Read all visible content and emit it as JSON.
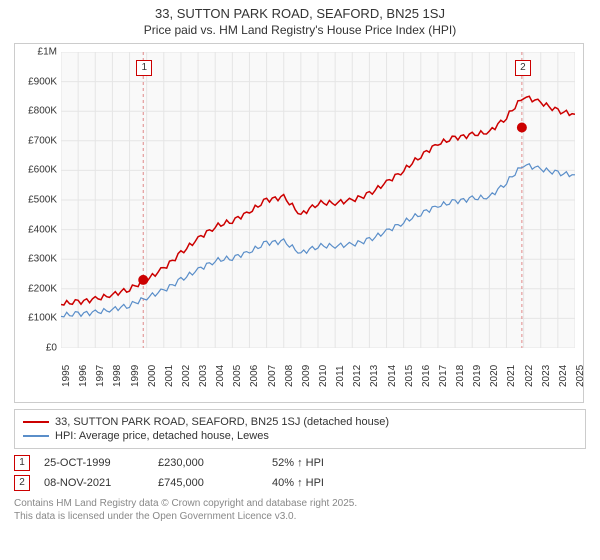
{
  "title": "33, SUTTON PARK ROAD, SEAFORD, BN25 1SJ",
  "subtitle": "Price paid vs. HM Land Registry's House Price Index (HPI)",
  "chart": {
    "type": "line",
    "background_color": "#f9f9f9",
    "grid_color": "#e5e5e5",
    "grid_on": true,
    "x_years": [
      1995,
      1996,
      1997,
      1998,
      1999,
      2000,
      2001,
      2002,
      2003,
      2004,
      2005,
      2006,
      2007,
      2008,
      2009,
      2010,
      2011,
      2012,
      2013,
      2014,
      2015,
      2016,
      2017,
      2018,
      2019,
      2020,
      2021,
      2022,
      2023,
      2024,
      2025
    ],
    "xlim": [
      1995,
      2025
    ],
    "ylim": [
      0,
      1000000
    ],
    "ytick_step": 100000,
    "ytick_labels": [
      "£0",
      "£100K",
      "£200K",
      "£300K",
      "£400K",
      "£500K",
      "£600K",
      "£700K",
      "£800K",
      "£900K",
      "£1M"
    ],
    "series": [
      {
        "name": "33, SUTTON PARK ROAD, SEAFORD, BN25 1SJ (detached house)",
        "color": "#cc0000",
        "line_width": 1.5,
        "x": [
          1995,
          1996,
          1997,
          1998,
          1999,
          2000,
          2001,
          2002,
          2003,
          2004,
          2005,
          2006,
          2007,
          2008,
          2009,
          2010,
          2011,
          2012,
          2013,
          2014,
          2015,
          2016,
          2017,
          2018,
          2019,
          2020,
          2021,
          2022,
          2023,
          2024,
          2025
        ],
        "y": [
          150000,
          155000,
          165000,
          180000,
          200000,
          230000,
          270000,
          320000,
          370000,
          410000,
          430000,
          460000,
          500000,
          510000,
          450000,
          490000,
          490000,
          500000,
          520000,
          560000,
          600000,
          650000,
          690000,
          710000,
          720000,
          730000,
          780000,
          850000,
          830000,
          800000,
          790000
        ]
      },
      {
        "name": "HPI: Average price, detached house, Lewes",
        "color": "#5a8ec9",
        "line_width": 1.2,
        "x": [
          1995,
          1996,
          1997,
          1998,
          1999,
          2000,
          2001,
          2002,
          2003,
          2004,
          2005,
          2006,
          2007,
          2008,
          2009,
          2010,
          2011,
          2012,
          2013,
          2014,
          2015,
          2016,
          2017,
          2018,
          2019,
          2020,
          2021,
          2022,
          2023,
          2024,
          2025
        ],
        "y": [
          110000,
          115000,
          120000,
          130000,
          145000,
          170000,
          195000,
          230000,
          265000,
          295000,
          305000,
          325000,
          355000,
          360000,
          320000,
          345000,
          345000,
          350000,
          365000,
          395000,
          425000,
          455000,
          480000,
          495000,
          505000,
          510000,
          560000,
          620000,
          605000,
          590000,
          585000
        ]
      }
    ],
    "markers": [
      {
        "index": 1,
        "x": 1999.8,
        "y": 230000,
        "color": "#cc0000",
        "radius": 5
      },
      {
        "index": 2,
        "x": 2021.9,
        "y": 745000,
        "color": "#cc0000",
        "radius": 5
      }
    ],
    "vlines": [
      {
        "x": 1999.8,
        "color": "#e08888",
        "dash": true
      },
      {
        "x": 2021.9,
        "color": "#e08888",
        "dash": true
      }
    ],
    "label_fontsize": 10,
    "title_fontsize": 13
  },
  "legend": {
    "items": [
      {
        "label": "33, SUTTON PARK ROAD, SEAFORD, BN25 1SJ (detached house)",
        "color": "#cc0000"
      },
      {
        "label": "HPI: Average price, detached house, Lewes",
        "color": "#5a8ec9"
      }
    ]
  },
  "sales": [
    {
      "index": "1",
      "date": "25-OCT-1999",
      "price": "£230,000",
      "hpi": "52% ↑ HPI"
    },
    {
      "index": "2",
      "date": "08-NOV-2021",
      "price": "£745,000",
      "hpi": "40% ↑ HPI"
    }
  ],
  "license": {
    "line1": "Contains HM Land Registry data © Crown copyright and database right 2025.",
    "line2": "This data is licensed under the Open Government Licence v3.0."
  }
}
